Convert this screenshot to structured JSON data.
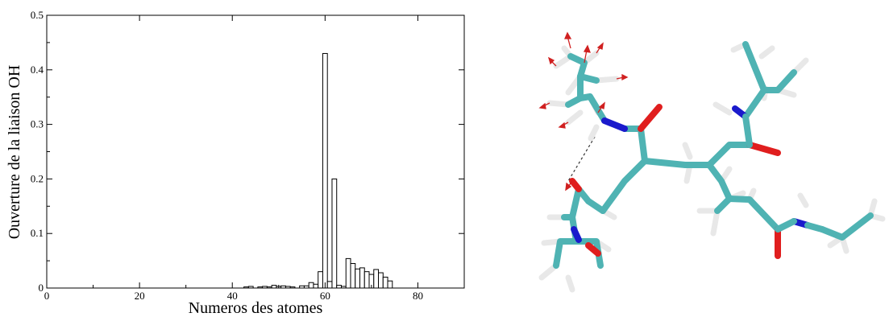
{
  "chart_data": {
    "type": "bar",
    "xlabel": "Numeros des atomes",
    "ylabel": "Ouverture de la liaison OH",
    "xlim": [
      0,
      90
    ],
    "ylim": [
      0,
      0.5
    ],
    "x_ticks": [
      0,
      20,
      40,
      60,
      80
    ],
    "y_ticks": [
      0,
      0.1,
      0.2,
      0.3,
      0.4,
      0.5
    ],
    "y_tick_labels": [
      "0",
      "0.1",
      "0.2",
      "0.3",
      "0.4",
      "0.5"
    ],
    "grid": false,
    "bar_width": 1,
    "x": [
      43,
      44,
      46,
      47,
      48,
      49,
      50,
      51,
      52,
      53,
      55,
      56,
      57,
      58,
      59,
      60,
      61,
      62,
      63,
      64,
      65,
      66,
      67,
      68,
      69,
      70,
      71,
      72,
      73,
      74
    ],
    "values": [
      0.002,
      0.003,
      0.002,
      0.003,
      0.002,
      0.005,
      0.003,
      0.004,
      0.003,
      0.002,
      0.004,
      0.004,
      0.01,
      0.007,
      0.03,
      0.43,
      0.012,
      0.2,
      0.005,
      0.003,
      0.054,
      0.045,
      0.035,
      0.037,
      0.03,
      0.025,
      0.034,
      0.028,
      0.02,
      0.013
    ]
  },
  "molecule": {
    "colors": {
      "carbon": "#4fb3b3",
      "hydrogen": "#e8e8e8",
      "oxygen": "#e01e1e",
      "nitrogen": "#1a1acc"
    }
  }
}
